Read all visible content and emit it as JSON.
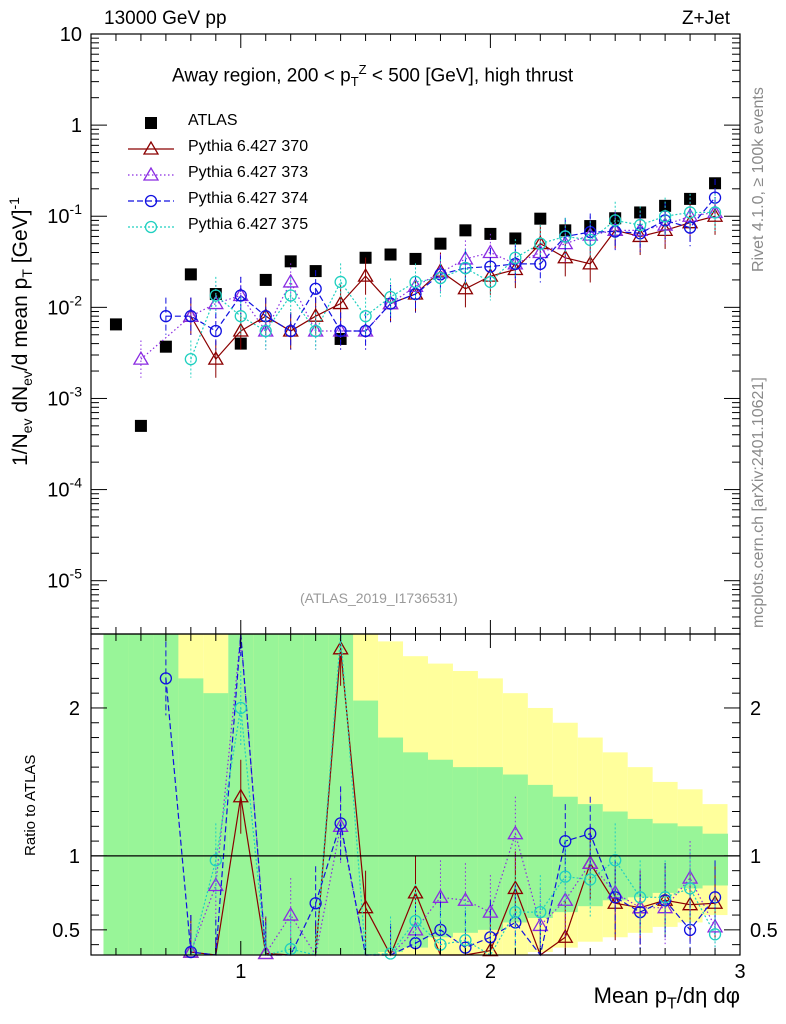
{
  "header": {
    "left": "13000 GeV pp",
    "right": "Z+Jet"
  },
  "side_labels": {
    "rivet": "Rivet 4.1.0, ≥ 100k events",
    "mcplots": "mcplots.cern.ch [arXiv:2401.10621]"
  },
  "top_ylabel": "1/N_ev dN_ev/d mean p_T [GeV]^-1",
  "bottom_ylabel": "Ratio to ATLAS",
  "analysis_id": "(ATLAS_2019_I1736531)",
  "colors": {
    "atlas": "#000000",
    "s370": "#8b0000",
    "s373": "#8a2be2",
    "s374": "#1010e0",
    "s375": "#20d0c0",
    "band_green": "#98f598",
    "band_yellow": "#ffff9c"
  },
  "chart_data": {
    "type": "line",
    "title": "Away region, 200 < p_T^Z < 500 [GeV], high thrust",
    "xlabel": "Mean p_T/dη dφ",
    "xlim": [
      0.4,
      3.0
    ],
    "x_ticks": [
      "1",
      "2",
      "3"
    ],
    "top_panel": {
      "yscale": "log",
      "ylim": [
        2.6e-06,
        10
      ],
      "y_ticks": [
        "10^-5",
        "10^-4",
        "10^-3",
        "10^-2",
        "10^-1",
        "1",
        "10"
      ],
      "x": [
        0.5,
        0.6,
        0.7,
        0.8,
        0.9,
        1.0,
        1.1,
        1.2,
        1.3,
        1.4,
        1.5,
        1.6,
        1.7,
        1.8,
        1.9,
        2.0,
        2.1,
        2.2,
        2.3,
        2.4,
        2.5,
        2.6,
        2.7,
        2.8,
        2.9
      ],
      "series": [
        {
          "name": "ATLAS",
          "style": "data",
          "values": [
            0.0065,
            0.0005,
            0.0037,
            0.023,
            0.014,
            0.004,
            0.02,
            0.032,
            0.025,
            0.0045,
            0.035,
            0.038,
            0.034,
            0.05,
            0.07,
            0.064,
            0.057,
            0.094,
            0.07,
            0.078,
            0.095,
            0.11,
            0.13,
            0.155,
            0.23
          ]
        },
        {
          "name": "Pythia 6.427 370",
          "style": "s370",
          "values": [
            null,
            null,
            null,
            0.008,
            0.0027,
            0.0055,
            0.008,
            0.0055,
            0.008,
            0.011,
            0.022,
            0.011,
            0.014,
            0.025,
            0.016,
            0.022,
            0.026,
            0.05,
            0.035,
            0.03,
            0.07,
            0.06,
            0.07,
            0.085,
            0.1
          ]
        },
        {
          "name": "Pythia 6.427 373",
          "style": "s373",
          "values": [
            null,
            0.0027,
            null,
            0.008,
            0.011,
            0.0135,
            0.0055,
            0.019,
            0.0055,
            0.0055,
            0.0055,
            0.011,
            0.017,
            0.024,
            0.034,
            0.04,
            0.03,
            0.04,
            0.05,
            0.062,
            0.07,
            0.07,
            0.08,
            0.1,
            0.11
          ]
        },
        {
          "name": "Pythia 6.427 374",
          "style": "s374",
          "values": [
            null,
            null,
            0.008,
            0.008,
            0.0055,
            0.0135,
            0.008,
            0.0055,
            0.016,
            0.0055,
            0.0055,
            0.011,
            0.014,
            0.023,
            0.027,
            0.028,
            0.03,
            0.03,
            0.06,
            0.067,
            0.068,
            0.065,
            0.09,
            0.075,
            0.16
          ]
        },
        {
          "name": "Pythia 6.427 375",
          "style": "s375",
          "values": [
            null,
            null,
            null,
            0.0027,
            0.0135,
            0.008,
            0.0055,
            0.0135,
            0.0055,
            0.019,
            0.008,
            0.013,
            0.019,
            0.021,
            0.027,
            0.019,
            0.035,
            0.05,
            0.06,
            0.055,
            0.09,
            0.08,
            0.1,
            0.11,
            0.11
          ]
        }
      ]
    },
    "ratio_panel": {
      "ylim": [
        0.33,
        2.5
      ],
      "y_ticks": [
        "0.5",
        "1",
        "2"
      ],
      "reference": 1,
      "band_edges": [
        0.45,
        0.55,
        0.65,
        0.75,
        0.85,
        0.95,
        1.05,
        1.15,
        1.25,
        1.35,
        1.45,
        1.55,
        1.65,
        1.75,
        1.85,
        1.95,
        2.05,
        2.15,
        2.25,
        2.35,
        2.45,
        2.55,
        2.65,
        2.75,
        2.85,
        2.95
      ],
      "band_green_hi": [
        2.5,
        2.5,
        2.5,
        2.2,
        2.1,
        2.5,
        2.5,
        2.5,
        2.5,
        2.5,
        2.05,
        1.8,
        1.7,
        1.65,
        1.6,
        1.6,
        1.55,
        1.48,
        1.4,
        1.35,
        1.3,
        1.25,
        1.22,
        1.2,
        1.15
      ],
      "band_green_lo": [
        0.33,
        0.33,
        0.33,
        0.33,
        0.33,
        0.33,
        0.33,
        0.33,
        0.33,
        0.33,
        0.33,
        0.35,
        0.38,
        0.45,
        0.48,
        0.5,
        0.55,
        0.58,
        0.62,
        0.66,
        0.7,
        0.72,
        0.75,
        0.78,
        0.8
      ],
      "band_yellow_hi": [
        2.5,
        2.5,
        2.5,
        2.5,
        2.5,
        2.5,
        2.5,
        2.5,
        2.5,
        2.5,
        2.5,
        2.45,
        2.35,
        2.3,
        2.25,
        2.2,
        2.1,
        2.0,
        1.9,
        1.8,
        1.7,
        1.6,
        1.5,
        1.45,
        1.35
      ],
      "band_yellow_lo": [
        0.33,
        0.33,
        0.33,
        0.33,
        0.33,
        0.33,
        0.33,
        0.33,
        0.33,
        0.33,
        0.33,
        0.33,
        0.33,
        0.33,
        0.33,
        0.33,
        0.33,
        0.35,
        0.38,
        0.42,
        0.45,
        0.48,
        0.52,
        0.55,
        0.6
      ],
      "x": [
        0.5,
        0.6,
        0.7,
        0.8,
        0.9,
        1.0,
        1.1,
        1.2,
        1.3,
        1.4,
        1.5,
        1.6,
        1.7,
        1.8,
        1.9,
        2.0,
        2.1,
        2.2,
        2.3,
        2.4,
        2.5,
        2.6,
        2.7,
        2.8,
        2.9
      ],
      "series": [
        {
          "name": "Pythia 6.427 370",
          "style": "s370",
          "values": [
            null,
            null,
            null,
            0.35,
            0.2,
            1.4,
            0.34,
            0.2,
            0.3,
            2.4,
            0.65,
            0.28,
            0.75,
            0.28,
            0.2,
            0.36,
            0.78,
            0.3,
            0.45,
            0.95,
            0.68,
            0.65,
            0.7,
            0.67,
            0.68
          ]
        },
        {
          "name": "Pythia 6.427 373",
          "style": "s373",
          "values": [
            null,
            null,
            null,
            0.35,
            0.8,
            2.6,
            0.34,
            0.6,
            0.22,
            1.2,
            0.15,
            0.29,
            0.5,
            0.72,
            0.7,
            0.62,
            1.15,
            0.53,
            0.7,
            0.95,
            0.75,
            0.65,
            0.65,
            0.85,
            0.52
          ]
        },
        {
          "name": "Pythia 6.427 374",
          "style": "s374",
          "values": [
            null,
            null,
            2.2,
            0.35,
            0.32,
            2.6,
            0.3,
            0.18,
            0.68,
            1.22,
            0.15,
            0.29,
            0.41,
            0.5,
            0.38,
            0.45,
            0.55,
            0.32,
            1.1,
            1.15,
            0.72,
            0.62,
            0.7,
            0.5,
            0.72
          ]
        },
        {
          "name": "Pythia 6.427 375",
          "style": "s375",
          "values": [
            null,
            null,
            null,
            0.12,
            0.97,
            2.0,
            0.28,
            0.37,
            0.22,
            2.6,
            0.25,
            0.34,
            0.56,
            0.4,
            0.43,
            0.3,
            0.62,
            0.62,
            0.86,
            0.84,
            0.97,
            0.72,
            0.72,
            0.78,
            0.47
          ]
        }
      ]
    }
  },
  "legend": [
    {
      "label": "ATLAS",
      "style": "data"
    },
    {
      "label": "Pythia 6.427 370",
      "style": "s370"
    },
    {
      "label": "Pythia 6.427 373",
      "style": "s373"
    },
    {
      "label": "Pythia 6.427 374",
      "style": "s374"
    },
    {
      "label": "Pythia 6.427 375",
      "style": "s375"
    }
  ]
}
